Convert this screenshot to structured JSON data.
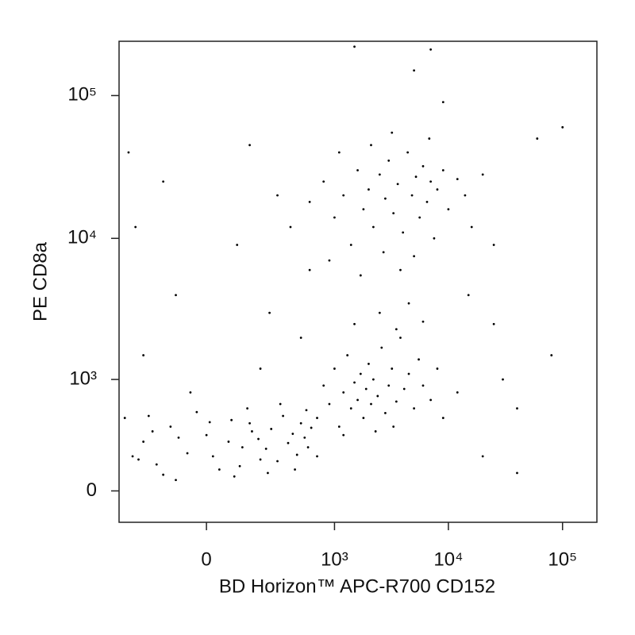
{
  "chart_data": {
    "type": "scatter",
    "xlabel": "BD Horizon™ APC-R700 CD152",
    "ylabel": "PE CD8a",
    "xscale": "biexponential",
    "yscale": "biexponential",
    "color": "#000000",
    "xlim": [
      -430,
      200000
    ],
    "ylim": [
      -180,
      240000
    ],
    "xticks": [
      0,
      {
        "value": 1000,
        "label": "10³"
      },
      {
        "value": 10000,
        "label": "10⁴"
      },
      {
        "value": 100000,
        "label": "10⁵"
      }
    ],
    "yticks": [
      0,
      {
        "value": 1000,
        "label": "10³"
      },
      {
        "value": 10000,
        "label": "10⁴"
      },
      {
        "value": 100000,
        "label": "10⁵"
      }
    ],
    "x": [
      -250,
      -180,
      -120,
      -60,
      0,
      40,
      80,
      120,
      160,
      200,
      -220,
      -150,
      -90,
      -30,
      20,
      70,
      110,
      150,
      190,
      230,
      260,
      300,
      340,
      380,
      420,
      460,
      500,
      540,
      580,
      620,
      -280,
      -200,
      -100,
      10,
      90,
      140,
      240,
      320,
      440,
      560,
      700,
      800,
      900,
      1000,
      1100,
      1200,
      1300,
      1400,
      1500,
      1600,
      1700,
      1800,
      1900,
      2000,
      2100,
      2200,
      2400,
      2600,
      2800,
      3000,
      3200,
      3500,
      3800,
      4100,
      4500,
      5000,
      5500,
      6000,
      7000,
      8000,
      1500,
      2500,
      3500,
      4500,
      6000,
      1200,
      2300,
      3300,
      9000,
      12000,
      400,
      600,
      800,
      1000,
      1200,
      1400,
      1600,
      1800,
      2000,
      2200,
      2500,
      2800,
      3000,
      3300,
      3600,
      4000,
      4400,
      4800,
      5200,
      5600,
      6000,
      6500,
      7000,
      7500,
      8000,
      9000,
      10000,
      12000,
      14000,
      16000,
      900,
      1700,
      2700,
      3800,
      5000,
      1100,
      2100,
      3200,
      6800,
      20000,
      -350,
      -300,
      -250,
      -150,
      -100,
      -50,
      100,
      150,
      250,
      300,
      200,
      500,
      600,
      15000,
      25000,
      30000,
      40000,
      60000,
      80000,
      100000,
      40000,
      20000,
      5000,
      1500,
      7000,
      -380,
      -320,
      700,
      9000,
      25000
    ],
    "y": [
      300,
      150,
      420,
      220,
      350,
      120,
      480,
      260,
      380,
      180,
      520,
      90,
      330,
      560,
      200,
      300,
      140,
      450,
      320,
      250,
      400,
      170,
      520,
      290,
      360,
      210,
      450,
      330,
      260,
      410,
      180,
      380,
      60,
      460,
      80,
      600,
      100,
      650,
      120,
      580,
      500,
      900,
      650,
      1200,
      420,
      800,
      1500,
      600,
      950,
      700,
      1100,
      500,
      850,
      1300,
      650,
      1000,
      750,
      1700,
      550,
      900,
      1200,
      680,
      2000,
      850,
      1100,
      600,
      1400,
      900,
      700,
      1200,
      2500,
      3000,
      2300,
      3500,
      2600,
      350,
      380,
      420,
      500,
      800,
      12000,
      18000,
      25000,
      14000,
      20000,
      9000,
      30000,
      16000,
      22000,
      12000,
      28000,
      19000,
      35000,
      15000,
      24000,
      11000,
      40000,
      20000,
      27000,
      14000,
      32000,
      18000,
      25000,
      10000,
      22000,
      30000,
      16000,
      26000,
      20000,
      12000,
      7000,
      5500,
      8000,
      6000,
      7500,
      40000,
      45000,
      55000,
      50000,
      28000,
      40000,
      12000,
      1500,
      25000,
      4000,
      800,
      9000,
      45000,
      3000,
      20000,
      1200,
      2000,
      6000,
      4000,
      2500,
      1000,
      600,
      50000,
      1500,
      60000,
      100,
      200,
      150000,
      220000,
      210000,
      500,
      200,
      200,
      90000,
      9000
    ]
  }
}
